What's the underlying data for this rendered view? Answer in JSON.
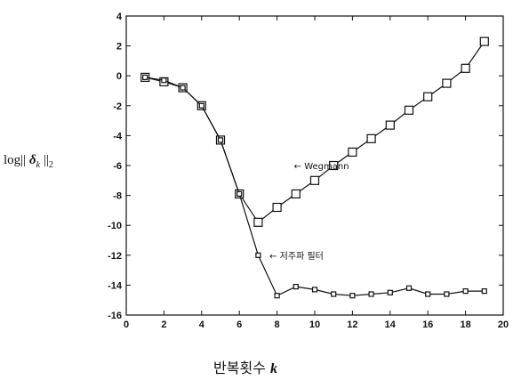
{
  "chart_data": {
    "type": "line",
    "title": "",
    "ylabel_parts": {
      "prefix": "log||",
      "symbol": "δ",
      "sub": "k",
      "suffix": "||",
      "sub2": "2"
    },
    "xlabel_parts": {
      "text": "반복횟수",
      "var": "k"
    },
    "xlim": [
      0,
      20
    ],
    "ylim": [
      -16,
      4
    ],
    "x_ticks": [
      0,
      2,
      4,
      6,
      8,
      10,
      12,
      14,
      16,
      18,
      20
    ],
    "y_ticks": [
      4,
      2,
      0,
      -2,
      -4,
      -6,
      -8,
      -10,
      -12,
      -14,
      -16
    ],
    "grid": false,
    "series": [
      {
        "name": "Wegmann",
        "marker": "large-square",
        "x": [
          1,
          2,
          3,
          4,
          5,
          6,
          7,
          8,
          9,
          10,
          11,
          12,
          13,
          14,
          15,
          16,
          17,
          18,
          19
        ],
        "y": [
          -0.1,
          -0.4,
          -0.8,
          -2.0,
          -4.3,
          -7.9,
          -9.8,
          -8.8,
          -7.9,
          -7.0,
          -6.0,
          -5.1,
          -4.2,
          -3.3,
          -2.3,
          -1.4,
          -0.5,
          0.5,
          2.3
        ]
      },
      {
        "name": "저주파 필터",
        "marker": "small-square",
        "x": [
          1,
          2,
          3,
          4,
          5,
          6,
          7,
          8,
          9,
          10,
          11,
          12,
          13,
          14,
          15,
          16,
          17,
          18,
          19
        ],
        "y": [
          -0.1,
          -0.3,
          -0.8,
          -2.0,
          -4.3,
          -7.9,
          -12.0,
          -14.7,
          -14.1,
          -14.3,
          -14.6,
          -14.7,
          -14.6,
          -14.5,
          -14.2,
          -14.6,
          -14.6,
          -14.4,
          -14.4
        ]
      }
    ],
    "annotations": [
      {
        "text": "← Wegmann",
        "x": 8.9,
        "y": -6.0
      },
      {
        "text": "← 저주파 필터",
        "x": 7.6,
        "y": -12.0
      }
    ]
  }
}
